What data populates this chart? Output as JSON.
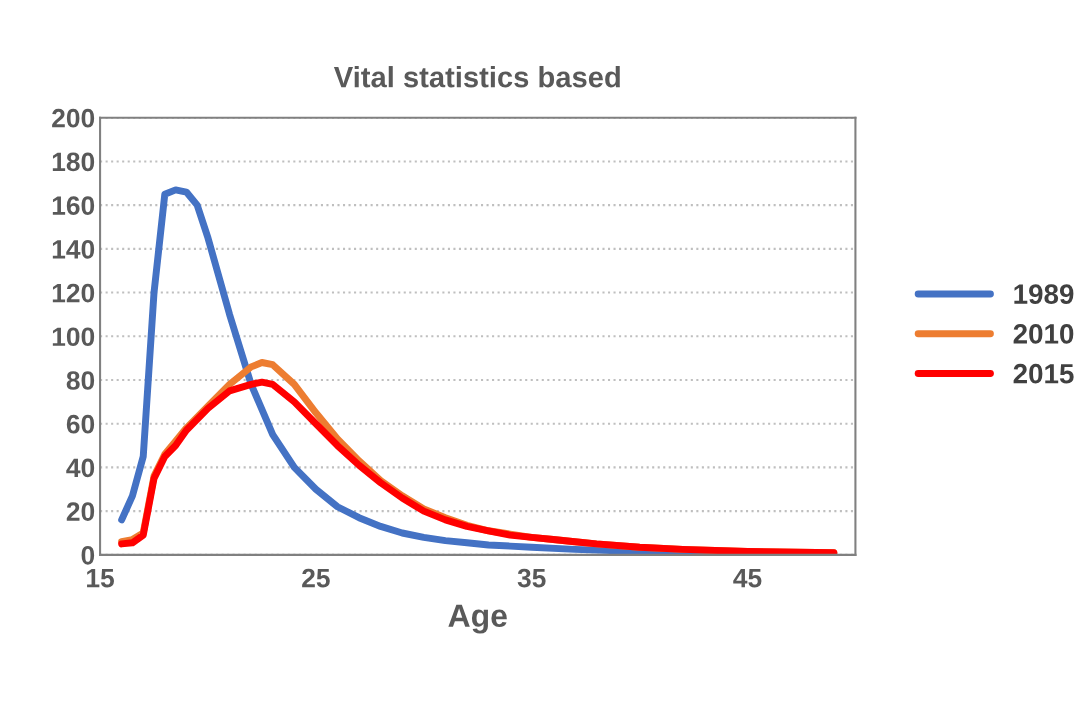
{
  "chart_data": {
    "type": "line",
    "title": "Vital statistics based",
    "xlabel": "Age",
    "xlim": [
      15,
      50
    ],
    "xticks": [
      15,
      25,
      35,
      45
    ],
    "ylim": [
      0,
      200
    ],
    "yticks": [
      0,
      20,
      40,
      60,
      80,
      100,
      120,
      140,
      160,
      180,
      200
    ],
    "grid": "y",
    "legend": "right",
    "line_style": "solid",
    "marker": "none",
    "series": [
      {
        "name": "1989",
        "color": "#4472c4",
        "x": [
          16,
          16.5,
          17,
          17.5,
          18,
          18.5,
          19,
          19.5,
          20,
          21,
          22,
          23,
          24,
          25,
          26,
          27,
          28,
          29,
          30,
          31,
          32,
          33,
          34,
          35,
          37,
          40,
          45,
          49
        ],
        "values": [
          16,
          27,
          45,
          120,
          165,
          167,
          166,
          160,
          145,
          110,
          78,
          55,
          40,
          30,
          22,
          17,
          13,
          10,
          8,
          6.5,
          5.5,
          4.5,
          4,
          3.5,
          2.5,
          1.5,
          1,
          0.5
        ]
      },
      {
        "name": "2010",
        "color": "#ed7d31",
        "x": [
          16,
          16.5,
          17,
          17.5,
          18,
          18.5,
          19,
          20,
          21,
          22,
          22.5,
          23,
          24,
          25,
          26,
          27,
          28,
          29,
          30,
          31,
          32,
          33,
          34,
          35,
          36,
          37,
          38,
          40,
          42,
          45,
          49
        ],
        "values": [
          6,
          7,
          10,
          36,
          46,
          52,
          58,
          68,
          78,
          86,
          88,
          87,
          78,
          65,
          53,
          43,
          34,
          27,
          21,
          17,
          13.5,
          11,
          9.5,
          8,
          7,
          6,
          5,
          3.5,
          2.5,
          1.5,
          1
        ]
      },
      {
        "name": "2015",
        "color": "#ff0000",
        "x": [
          16,
          16.5,
          17,
          17.5,
          18,
          18.5,
          19,
          20,
          21,
          22,
          22.5,
          23,
          24,
          25,
          26,
          27,
          28,
          29,
          30,
          31,
          32,
          33,
          34,
          35,
          36,
          37,
          38,
          40,
          42,
          45,
          49
        ],
        "values": [
          5,
          5.5,
          9,
          35,
          45,
          50,
          57,
          67,
          75,
          78,
          79,
          78,
          70,
          60,
          50,
          41,
          33,
          26,
          20,
          16,
          13,
          11,
          9,
          8,
          7,
          6,
          5,
          3.5,
          2.5,
          1.5,
          1
        ]
      }
    ]
  }
}
